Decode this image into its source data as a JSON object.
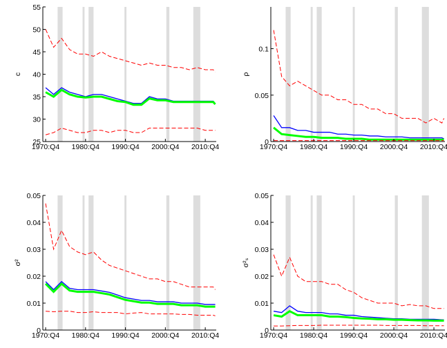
{
  "chart_data": [
    {
      "type": "line",
      "ylabel": "c",
      "x": [
        1970.75,
        1972.75,
        1974.75,
        1976.75,
        1978.75,
        1980.75,
        1982.75,
        1984.75,
        1986.75,
        1988.75,
        1990.75,
        1992.75,
        1994.75,
        1996.75,
        1998.75,
        2000.75,
        2002.75,
        2004.75,
        2006.75,
        2008.75,
        2010.75,
        2012.75,
        2013.25
      ],
      "xlim": [
        1970.05,
        2013.5
      ],
      "xticks": [
        {
          "value": 1970.75,
          "label": "1970:Q4"
        },
        {
          "value": 1980.75,
          "label": "1980:Q4"
        },
        {
          "value": 1990.75,
          "label": "1990:Q4"
        },
        {
          "value": 2000.75,
          "label": "2000:Q4"
        },
        {
          "value": 2010.75,
          "label": "2010:Q4"
        }
      ],
      "ylim": [
        25,
        55
      ],
      "yticks": [
        25,
        30,
        35,
        40,
        45,
        50,
        55
      ],
      "shading": [
        [
          1973.75,
          1975.0
        ],
        [
          1980.0,
          1980.5
        ],
        [
          1981.5,
          1982.75
        ],
        [
          1990.5,
          1991.0
        ],
        [
          2001.0,
          2001.75
        ],
        [
          2007.75,
          2009.5
        ]
      ],
      "shading_color": "#dddddd",
      "series": [
        {
          "color": "#ff0000",
          "dashed": true,
          "values": [
            50,
            46,
            48,
            45.5,
            44.5,
            44.5,
            44,
            45,
            44,
            43.5,
            43,
            42.5,
            42,
            42.5,
            42,
            42,
            41.5,
            41.5,
            41,
            41.5,
            41,
            41,
            40.5
          ]
        },
        {
          "color": "#0000ff",
          "width": 1.3,
          "values": [
            37,
            35.5,
            37,
            36,
            35.5,
            35,
            35.5,
            35.5,
            35,
            34.5,
            34,
            33.5,
            33.5,
            35,
            34.5,
            34.5,
            34,
            34,
            34,
            34,
            34,
            34,
            33.5
          ]
        },
        {
          "color": "#00ff00",
          "width": 3,
          "values": [
            36,
            35,
            36.5,
            35.5,
            35,
            34.8,
            35,
            35,
            34.5,
            34,
            33.8,
            33.2,
            33.2,
            34.6,
            34.2,
            34.2,
            33.8,
            33.8,
            33.8,
            33.8,
            33.8,
            33.8,
            33.3
          ]
        },
        {
          "color": "#ff0000",
          "dashed": true,
          "values": [
            26.5,
            27,
            28,
            27.5,
            27,
            27,
            27.5,
            27.5,
            27,
            27.5,
            27.5,
            27,
            27,
            28,
            28,
            28,
            28,
            28,
            28,
            28,
            27.5,
            27.5,
            27.5
          ]
        }
      ]
    },
    {
      "type": "line",
      "ylabel": "ρ",
      "x": [
        1970.75,
        1972.75,
        1974.75,
        1976.75,
        1978.75,
        1980.75,
        1982.75,
        1984.75,
        1986.75,
        1988.75,
        1990.75,
        1992.75,
        1994.75,
        1996.75,
        1998.75,
        2000.75,
        2002.75,
        2004.75,
        2006.75,
        2008.75,
        2010.75,
        2012.75,
        2013.25
      ],
      "xlim": [
        1970.05,
        2013.5
      ],
      "xticks": [
        {
          "value": 1970.75,
          "label": "1970:Q4"
        },
        {
          "value": 1980.75,
          "label": "1980:Q4"
        },
        {
          "value": 1990.75,
          "label": "1990:Q4"
        },
        {
          "value": 2000.75,
          "label": "2000:Q4"
        },
        {
          "value": 2010.75,
          "label": "2010:Q4"
        }
      ],
      "ylim": [
        0,
        0.145
      ],
      "yticks": [
        0,
        0.05,
        0.1
      ],
      "shading": [
        [
          1973.75,
          1975.0
        ],
        [
          1980.0,
          1980.5
        ],
        [
          1981.5,
          1982.75
        ],
        [
          1990.5,
          1991.0
        ],
        [
          2001.0,
          2001.75
        ],
        [
          2007.75,
          2009.5
        ]
      ],
      "shading_color": "#dddddd",
      "series": [
        {
          "color": "#ff0000",
          "dashed": true,
          "values": [
            0.12,
            0.07,
            0.06,
            0.065,
            0.06,
            0.055,
            0.05,
            0.05,
            0.045,
            0.045,
            0.04,
            0.04,
            0.035,
            0.035,
            0.03,
            0.03,
            0.025,
            0.025,
            0.025,
            0.02,
            0.025,
            0.02,
            0.025
          ]
        },
        {
          "color": "#0000ff",
          "width": 1.3,
          "values": [
            0.028,
            0.015,
            0.015,
            0.012,
            0.012,
            0.01,
            0.01,
            0.01,
            0.008,
            0.008,
            0.007,
            0.007,
            0.006,
            0.006,
            0.005,
            0.005,
            0.005,
            0.004,
            0.004,
            0.004,
            0.004,
            0.004,
            0.003
          ]
        },
        {
          "color": "#00ff00",
          "width": 3,
          "values": [
            0.015,
            0.008,
            0.007,
            0.006,
            0.005,
            0.005,
            0.004,
            0.004,
            0.004,
            0.003,
            0.003,
            0.003,
            0.002,
            0.002,
            0.002,
            0.002,
            0.002,
            0.002,
            0.002,
            0.002,
            0.002,
            0.002,
            0.002
          ]
        },
        {
          "color": "#ff0000",
          "dashed": true,
          "values": [
            0.001,
            0.001,
            0.001,
            0.001,
            0.001,
            0.001,
            0.001,
            0.001,
            0.001,
            0.001,
            0.001,
            0.001,
            0.001,
            0.001,
            0.001,
            0.001,
            0.001,
            0.001,
            0.001,
            0.001,
            0.001,
            0.001,
            0.001
          ]
        }
      ]
    },
    {
      "type": "line",
      "ylabel": "σ²",
      "x": [
        1970.75,
        1972.75,
        1974.75,
        1976.75,
        1978.75,
        1980.75,
        1982.75,
        1984.75,
        1986.75,
        1988.75,
        1990.75,
        1992.75,
        1994.75,
        1996.75,
        1998.75,
        2000.75,
        2002.75,
        2004.75,
        2006.75,
        2008.75,
        2010.75,
        2012.75,
        2013.25
      ],
      "xlim": [
        1970.05,
        2013.5
      ],
      "xticks": [
        {
          "value": 1970.75,
          "label": "1970:Q4"
        },
        {
          "value": 1980.75,
          "label": "1980:Q4"
        },
        {
          "value": 1990.75,
          "label": "1990:Q4"
        },
        {
          "value": 2000.75,
          "label": "2000:Q4"
        },
        {
          "value": 2010.75,
          "label": "2010:Q4"
        }
      ],
      "ylim": [
        0,
        0.05
      ],
      "yticks": [
        0,
        0.01,
        0.02,
        0.03,
        0.04,
        0.05
      ],
      "shading": [
        [
          1973.75,
          1975.0
        ],
        [
          1980.0,
          1980.5
        ],
        [
          1981.5,
          1982.75
        ],
        [
          1990.5,
          1991.0
        ],
        [
          2001.0,
          2001.75
        ],
        [
          2007.75,
          2009.5
        ]
      ],
      "shading_color": "#dddddd",
      "series": [
        {
          "color": "#ff0000",
          "dashed": true,
          "values": [
            0.047,
            0.03,
            0.037,
            0.031,
            0.029,
            0.028,
            0.029,
            0.026,
            0.024,
            0.023,
            0.022,
            0.021,
            0.02,
            0.019,
            0.019,
            0.018,
            0.018,
            0.017,
            0.016,
            0.016,
            0.016,
            0.016,
            0.015
          ]
        },
        {
          "color": "#0000ff",
          "width": 1.3,
          "values": [
            0.018,
            0.015,
            0.018,
            0.0155,
            0.015,
            0.015,
            0.015,
            0.0145,
            0.014,
            0.013,
            0.012,
            0.0115,
            0.011,
            0.011,
            0.0105,
            0.0105,
            0.0105,
            0.01,
            0.01,
            0.01,
            0.0095,
            0.0095,
            0.0095
          ]
        },
        {
          "color": "#00ff00",
          "width": 3,
          "values": [
            0.0172,
            0.0142,
            0.0172,
            0.0147,
            0.0142,
            0.0142,
            0.0142,
            0.0137,
            0.0132,
            0.0122,
            0.0112,
            0.0107,
            0.0102,
            0.0102,
            0.0097,
            0.0097,
            0.0097,
            0.0092,
            0.0092,
            0.0092,
            0.0087,
            0.0087,
            0.0087
          ]
        },
        {
          "color": "#ff0000",
          "dashed": true,
          "values": [
            0.007,
            0.0068,
            0.007,
            0.007,
            0.0065,
            0.0065,
            0.0068,
            0.0065,
            0.0065,
            0.0065,
            0.006,
            0.0063,
            0.0065,
            0.006,
            0.006,
            0.006,
            0.006,
            0.0058,
            0.0058,
            0.0055,
            0.0055,
            0.0055,
            0.0053
          ]
        }
      ]
    },
    {
      "type": "line",
      "ylabel": "σ²ₛ",
      "x": [
        1970.75,
        1972.75,
        1974.75,
        1976.75,
        1978.75,
        1980.75,
        1982.75,
        1984.75,
        1986.75,
        1988.75,
        1990.75,
        1992.75,
        1994.75,
        1996.75,
        1998.75,
        2000.75,
        2002.75,
        2004.75,
        2006.75,
        2008.75,
        2010.75,
        2012.75,
        2013.25
      ],
      "xlim": [
        1970.05,
        2013.5
      ],
      "xticks": [
        {
          "value": 1970.75,
          "label": "1970:Q4"
        },
        {
          "value": 1980.75,
          "label": "1980:Q4"
        },
        {
          "value": 1990.75,
          "label": "1990:Q4"
        },
        {
          "value": 2000.75,
          "label": "2000:Q4"
        },
        {
          "value": 2010.75,
          "label": "2010:Q4"
        }
      ],
      "ylim": [
        0,
        0.05
      ],
      "yticks": [
        0,
        0.01,
        0.02,
        0.03,
        0.04,
        0.05
      ],
      "shading": [
        [
          1973.75,
          1975.0
        ],
        [
          1980.0,
          1980.5
        ],
        [
          1981.5,
          1982.75
        ],
        [
          1990.5,
          1991.0
        ],
        [
          2001.0,
          2001.75
        ],
        [
          2007.75,
          2009.5
        ]
      ],
      "shading_color": "#dddddd",
      "series": [
        {
          "color": "#ff0000",
          "dashed": true,
          "values": [
            0.028,
            0.02,
            0.027,
            0.02,
            0.018,
            0.018,
            0.018,
            0.017,
            0.017,
            0.015,
            0.014,
            0.012,
            0.011,
            0.01,
            0.01,
            0.01,
            0.009,
            0.0095,
            0.009,
            0.009,
            0.008,
            0.008,
            0.008
          ]
        },
        {
          "color": "#0000ff",
          "width": 1.3,
          "values": [
            0.007,
            0.0065,
            0.009,
            0.007,
            0.0065,
            0.0065,
            0.0065,
            0.006,
            0.006,
            0.0055,
            0.0055,
            0.005,
            0.0048,
            0.0046,
            0.0044,
            0.0042,
            0.0042,
            0.004,
            0.004,
            0.004,
            0.004,
            0.0038,
            0.0038
          ]
        },
        {
          "color": "#00ff00",
          "width": 3,
          "values": [
            0.0055,
            0.005,
            0.007,
            0.0055,
            0.0055,
            0.0055,
            0.0055,
            0.005,
            0.005,
            0.0048,
            0.0045,
            0.0043,
            0.0042,
            0.004,
            0.004,
            0.0038,
            0.0038,
            0.0037,
            0.0036,
            0.0036,
            0.0035,
            0.0035,
            0.0035
          ]
        },
        {
          "color": "#ff0000",
          "dashed": true,
          "values": [
            0.0015,
            0.0015,
            0.0016,
            0.0017,
            0.0017,
            0.0017,
            0.0018,
            0.0018,
            0.0018,
            0.0018,
            0.0018,
            0.0018,
            0.0018,
            0.0018,
            0.0017,
            0.0017,
            0.0017,
            0.0017,
            0.0017,
            0.0016,
            0.0016,
            0.0016,
            0.0016
          ]
        }
      ]
    }
  ]
}
